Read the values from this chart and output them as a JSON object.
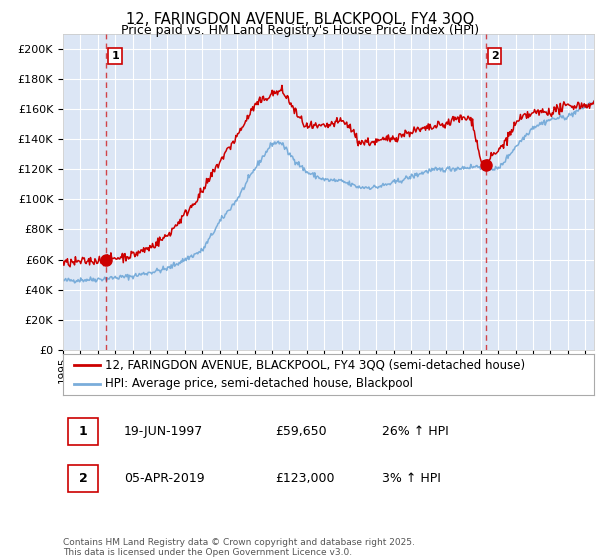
{
  "title": "12, FARINGDON AVENUE, BLACKPOOL, FY4 3QQ",
  "subtitle": "Price paid vs. HM Land Registry's House Price Index (HPI)",
  "legend1": "12, FARINGDON AVENUE, BLACKPOOL, FY4 3QQ (semi-detached house)",
  "legend2": "HPI: Average price, semi-detached house, Blackpool",
  "annotation1_label": "1",
  "annotation1_date": "19-JUN-1997",
  "annotation1_price": "£59,650",
  "annotation1_hpi": "26% ↑ HPI",
  "annotation2_label": "2",
  "annotation2_date": "05-APR-2019",
  "annotation2_price": "£123,000",
  "annotation2_hpi": "3% ↑ HPI",
  "footer": "Contains HM Land Registry data © Crown copyright and database right 2025.\nThis data is licensed under the Open Government Licence v3.0.",
  "red_color": "#cc0000",
  "blue_color": "#7aadda",
  "background_color": "#dce6f5",
  "ylim": [
    0,
    210000
  ],
  "yticks": [
    0,
    20000,
    40000,
    60000,
    80000,
    100000,
    120000,
    140000,
    160000,
    180000,
    200000
  ],
  "xlim_start": 1995.0,
  "xlim_end": 2025.5,
  "marker1_x": 1997.47,
  "marker1_y": 59650,
  "marker2_x": 2019.27,
  "marker2_y": 123000,
  "vline1_x": 1997.47,
  "vline2_x": 2019.27
}
